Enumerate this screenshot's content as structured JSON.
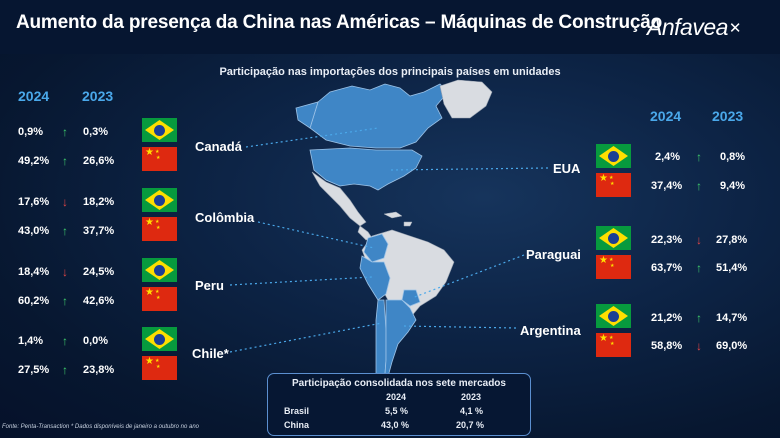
{
  "header": {
    "title": "Aumento da presença da China nas Américas – Máquinas de Construção",
    "logo_text": "Anfavea",
    "logo_mark": "✕"
  },
  "subtitle": "Participação nas importações dos principais países em unidades",
  "year_headers": {
    "left": [
      "2024",
      "2023"
    ],
    "right": [
      "2024",
      "2023"
    ]
  },
  "colors": {
    "year_header": "#4aa8ea",
    "arrow_up": "#3ecb6c",
    "arrow_down": "#e44646",
    "map_highlight": "#3f86c6",
    "map_other": "#d9dce1",
    "background": "#0d2446"
  },
  "countries": [
    {
      "name": "Canadá",
      "side": "left",
      "brasil": {
        "y2024": "0,9%",
        "y2023": "0,3%",
        "trend": "up"
      },
      "china": {
        "y2024": "49,2%",
        "y2023": "26,6%",
        "trend": "up"
      }
    },
    {
      "name": "Colômbia",
      "side": "left",
      "brasil": {
        "y2024": "17,6%",
        "y2023": "18,2%",
        "trend": "down"
      },
      "china": {
        "y2024": "43,0%",
        "y2023": "37,7%",
        "trend": "up"
      }
    },
    {
      "name": "Peru",
      "side": "left",
      "brasil": {
        "y2024": "18,4%",
        "y2023": "24,5%",
        "trend": "down"
      },
      "china": {
        "y2024": "60,2%",
        "y2023": "42,6%",
        "trend": "up"
      }
    },
    {
      "name": "Chile*",
      "side": "left",
      "brasil": {
        "y2024": "1,4%",
        "y2023": "0,0%",
        "trend": "up"
      },
      "china": {
        "y2024": "27,5%",
        "y2023": "23,8%",
        "trend": "up"
      }
    },
    {
      "name": "EUA",
      "side": "right",
      "brasil": {
        "y2024": "2,4%",
        "y2023": "0,8%",
        "trend": "up"
      },
      "china": {
        "y2024": "37,4%",
        "y2023": "9,4%",
        "trend": "up"
      }
    },
    {
      "name": "Paraguai",
      "side": "right",
      "brasil": {
        "y2024": "22,3%",
        "y2023": "27,8%",
        "trend": "down"
      },
      "china": {
        "y2024": "63,7%",
        "y2023": "51,4%",
        "trend": "up"
      }
    },
    {
      "name": "Argentina",
      "side": "right",
      "brasil": {
        "y2024": "21,2%",
        "y2023": "14,7%",
        "trend": "up"
      },
      "china": {
        "y2024": "58,8%",
        "y2023": "69,0%",
        "trend": "down"
      }
    }
  ],
  "summary": {
    "title": "Participação consolidada nos sete mercados",
    "columns": [
      "",
      "2024",
      "2023"
    ],
    "rows": [
      {
        "label": "Brasil",
        "y2024": "5,5 %",
        "y2023": "4,1 %"
      },
      {
        "label": "China",
        "y2024": "43,0 %",
        "y2023": "20,7 %"
      }
    ]
  },
  "footer": "Fonte: Penta-Transaction * Dados disponíveis de janeiro a outubro no ano"
}
